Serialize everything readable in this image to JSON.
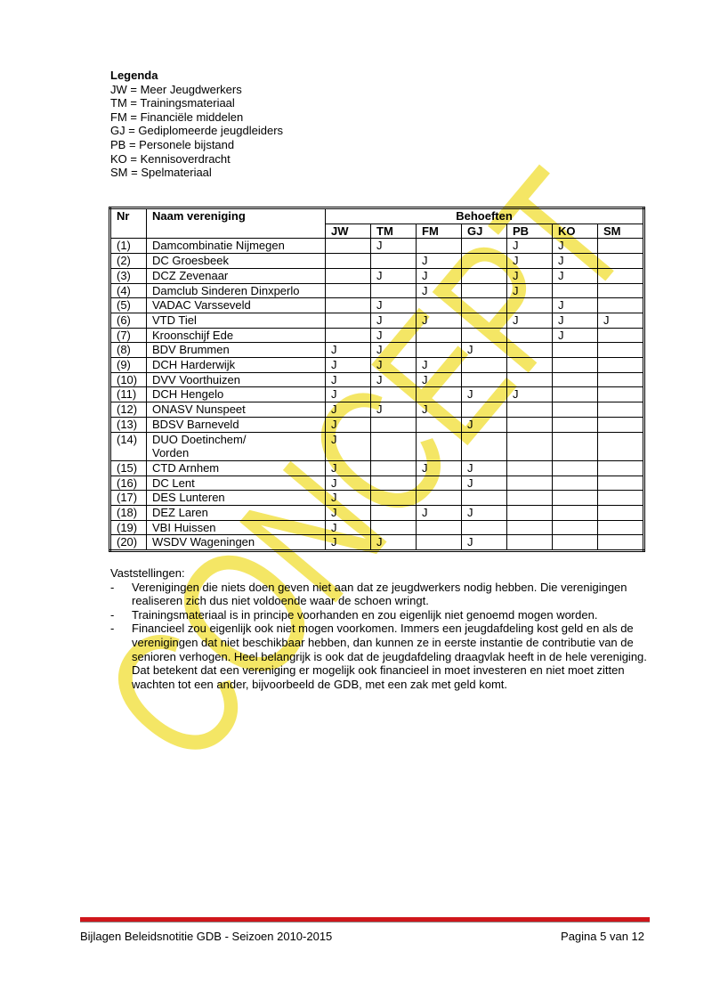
{
  "watermark": "CONCEPT",
  "legend": {
    "title": "Legenda",
    "items": [
      "JW = Meer Jeugdwerkers",
      "TM = Trainingsmateriaal",
      "FM = Financiële middelen",
      "GJ = Gediplomeerde jeugdleiders",
      "PB = Personele bijstand",
      "KO = Kennisoverdracht",
      "SM = Spelmateriaal"
    ]
  },
  "table": {
    "headers": {
      "nr": "Nr",
      "name": "Naam vereniging",
      "group": "Behoeften"
    },
    "columns": [
      "JW",
      "TM",
      "FM",
      "GJ",
      "PB",
      "KO",
      "SM"
    ],
    "rows": [
      {
        "nr": "(1)",
        "name": "Damcombinatie Nijmegen",
        "cells": [
          "",
          "J",
          "",
          "",
          "J",
          "J",
          ""
        ]
      },
      {
        "nr": "(2)",
        "name": "DC Groesbeek",
        "cells": [
          "",
          "",
          "J",
          "",
          "J",
          "J",
          ""
        ]
      },
      {
        "nr": "(3)",
        "name": "DCZ Zevenaar",
        "cells": [
          "",
          "J",
          "J",
          "",
          "J",
          "J",
          ""
        ]
      },
      {
        "nr": "(4)",
        "name": "Damclub Sinderen Dinxperlo",
        "cells": [
          "",
          "",
          "J",
          "",
          "J",
          "",
          ""
        ]
      },
      {
        "nr": "(5)",
        "name": "VADAC Varsseveld",
        "cells": [
          "",
          "J",
          "",
          "",
          "",
          "J",
          ""
        ]
      },
      {
        "nr": "(6)",
        "name": "VTD Tiel",
        "cells": [
          "",
          "J",
          "J",
          "",
          "J",
          "J",
          "J"
        ]
      },
      {
        "nr": "(7)",
        "name": "Kroonschijf Ede",
        "cells": [
          "",
          "J",
          "",
          "",
          "",
          "J",
          ""
        ]
      },
      {
        "nr": "(8)",
        "name": "BDV Brummen",
        "cells": [
          "J",
          "J",
          "",
          "J",
          "",
          "",
          ""
        ]
      },
      {
        "nr": "(9)",
        "name": "DCH Harderwijk",
        "cells": [
          "J",
          "J",
          "J",
          "",
          "",
          "",
          ""
        ]
      },
      {
        "nr": "(10)",
        "name": "DVV Voorthuizen",
        "cells": [
          "J",
          "J",
          "J",
          "",
          "",
          "",
          ""
        ]
      },
      {
        "nr": "(11)",
        "name": "DCH Hengelo",
        "cells": [
          "J",
          "",
          "",
          "J",
          "J",
          "",
          ""
        ]
      },
      {
        "nr": "(12)",
        "name": "ONASV Nunspeet",
        "cells": [
          "J",
          "J",
          "J",
          "",
          "",
          "",
          ""
        ]
      },
      {
        "nr": "(13)",
        "name": "BDSV  Barneveld",
        "cells": [
          "J",
          "",
          "",
          "J",
          "",
          "",
          ""
        ]
      },
      {
        "nr": "(14)",
        "name": "DUO Doetinchem/ Vorden",
        "cells": [
          "J",
          "",
          "",
          "",
          "",
          "",
          ""
        ]
      },
      {
        "nr": "(15)",
        "name": "CTD Arnhem",
        "cells": [
          "J",
          "",
          "J",
          "J",
          "",
          "",
          ""
        ]
      },
      {
        "nr": "(16)",
        "name": "DC Lent",
        "cells": [
          "J",
          "",
          "",
          "J",
          "",
          "",
          ""
        ]
      },
      {
        "nr": "(17)",
        "name": "DES Lunteren",
        "cells": [
          "J",
          "",
          "",
          "",
          "",
          "",
          ""
        ]
      },
      {
        "nr": "(18)",
        "name": "DEZ Laren",
        "cells": [
          "J",
          "",
          "J",
          "J",
          "",
          "",
          ""
        ]
      },
      {
        "nr": "(19)",
        "name": "VBI Huissen",
        "cells": [
          "J",
          "",
          "",
          "",
          "",
          "",
          ""
        ]
      },
      {
        "nr": "(20)",
        "name": "WSDV Wageningen",
        "cells": [
          "J",
          "J",
          "",
          "J",
          "",
          "",
          ""
        ]
      }
    ]
  },
  "notes": {
    "title": "Vaststellingen:",
    "items": [
      "Verenigingen die niets doen geven niet aan dat ze jeugdwerkers nodig hebben. Die verenigingen realiseren zich dus niet voldoende waar de schoen wringt.",
      "Trainingsmateriaal is in principe voorhanden en zou eigenlijk niet genoemd mogen worden.",
      "Financieel zou eigenlijk ook niet mogen voorkomen. Immers een jeugdafdeling kost geld en als de verenigingen dat niet beschikbaar hebben, dan kunnen ze in eerste instantie de contributie van de senioren verhogen. Heel belangrijk is ook dat de jeugdafdeling draagvlak heeft in de hele vereniging. Dat betekent dat een vereniging er mogelijk ook financieel in moet investeren en niet moet zitten wachten tot een ander, bijvoorbeeld de GDB, met een zak met geld komt."
    ]
  },
  "footer": {
    "left": "Bijlagen Beleidsnotitie GDB - Seizoen 2010-2015",
    "right": "Pagina 5 van 12"
  },
  "colors": {
    "watermark": "#f2e24a",
    "footer_bar": "#d0161b"
  }
}
